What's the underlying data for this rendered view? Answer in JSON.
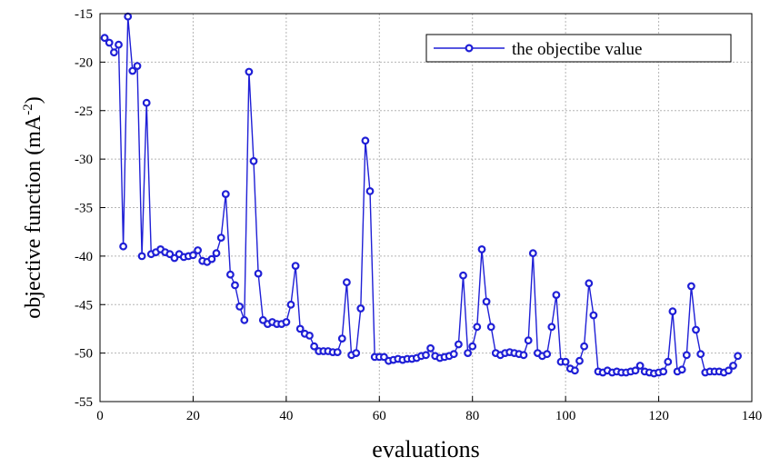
{
  "chart_data": {
    "type": "line",
    "xlabel": "evaluations",
    "ylabel_main": "objective function (mA",
    "ylabel_sup": "-2",
    "ylabel_close": ")",
    "xlim": [
      0,
      140
    ],
    "ylim": [
      -55,
      -15
    ],
    "xticks": [
      0,
      20,
      40,
      60,
      80,
      100,
      120,
      140
    ],
    "yticks": [
      -15,
      -20,
      -25,
      -30,
      -35,
      -40,
      -45,
      -50,
      -55
    ],
    "grid": true,
    "legend_position": "top-right",
    "color": "#1f1fd6",
    "series": [
      {
        "name": "the objectibe value",
        "x": [
          1,
          2,
          3,
          4,
          5,
          6,
          7,
          8,
          9,
          10,
          11,
          12,
          13,
          14,
          15,
          16,
          17,
          18,
          19,
          20,
          21,
          22,
          23,
          24,
          25,
          26,
          27,
          28,
          29,
          30,
          31,
          32,
          33,
          34,
          35,
          36,
          37,
          38,
          39,
          40,
          41,
          42,
          43,
          44,
          45,
          46,
          47,
          48,
          49,
          50,
          51,
          52,
          53,
          54,
          55,
          56,
          57,
          58,
          59,
          60,
          61,
          62,
          63,
          64,
          65,
          66,
          67,
          68,
          69,
          70,
          71,
          72,
          73,
          74,
          75,
          76,
          77,
          78,
          79,
          80,
          81,
          82,
          83,
          84,
          85,
          86,
          87,
          88,
          89,
          90,
          91,
          92,
          93,
          94,
          95,
          96,
          97,
          98,
          99,
          100,
          101,
          102,
          103,
          104,
          105,
          106,
          107,
          108,
          109,
          110,
          111,
          112,
          113,
          114,
          115,
          116,
          117,
          118,
          119,
          120,
          121,
          122,
          123,
          124,
          125,
          126,
          127,
          128,
          129,
          130,
          131,
          132,
          133,
          134,
          135,
          136,
          137
        ],
        "y": [
          -17.5,
          -18.0,
          -19.0,
          -18.2,
          -39.0,
          -15.3,
          -20.9,
          -20.4,
          -40.0,
          -24.2,
          -39.8,
          -39.6,
          -39.3,
          -39.6,
          -39.8,
          -40.2,
          -39.8,
          -40.1,
          -40.0,
          -39.9,
          -39.4,
          -40.5,
          -40.6,
          -40.3,
          -39.7,
          -38.1,
          -33.6,
          -41.9,
          -43.0,
          -45.2,
          -46.6,
          -21.0,
          -30.2,
          -41.8,
          -46.6,
          -47.0,
          -46.8,
          -47.0,
          -47.0,
          -46.8,
          -45.0,
          -41.0,
          -47.5,
          -48.0,
          -48.2,
          -49.3,
          -49.8,
          -49.8,
          -49.8,
          -49.9,
          -49.9,
          -48.5,
          -42.7,
          -50.2,
          -50.0,
          -45.4,
          -28.1,
          -33.3,
          -50.4,
          -50.4,
          -50.4,
          -50.8,
          -50.7,
          -50.6,
          -50.7,
          -50.6,
          -50.6,
          -50.5,
          -50.3,
          -50.2,
          -49.5,
          -50.3,
          -50.5,
          -50.4,
          -50.3,
          -50.1,
          -49.1,
          -42.0,
          -50.0,
          -49.3,
          -47.3,
          -39.3,
          -44.7,
          -47.3,
          -50.0,
          -50.2,
          -50.0,
          -49.9,
          -50.0,
          -50.1,
          -50.2,
          -48.7,
          -39.7,
          -50.0,
          -50.3,
          -50.1,
          -47.3,
          -44.0,
          -50.9,
          -50.9,
          -51.6,
          -51.8,
          -50.8,
          -49.3,
          -42.8,
          -46.1,
          -51.9,
          -52.0,
          -51.8,
          -52.0,
          -51.9,
          -52.0,
          -52.0,
          -51.9,
          -51.8,
          -51.3,
          -51.9,
          -52.0,
          -52.1,
          -52.0,
          -51.9,
          -50.9,
          -45.7,
          -51.9,
          -51.7,
          -50.2,
          -43.1,
          -47.6,
          -50.1,
          -52.0,
          -51.9,
          -51.9,
          -51.9,
          -52.0,
          -51.8,
          -51.3,
          -50.3
        ]
      }
    ]
  }
}
